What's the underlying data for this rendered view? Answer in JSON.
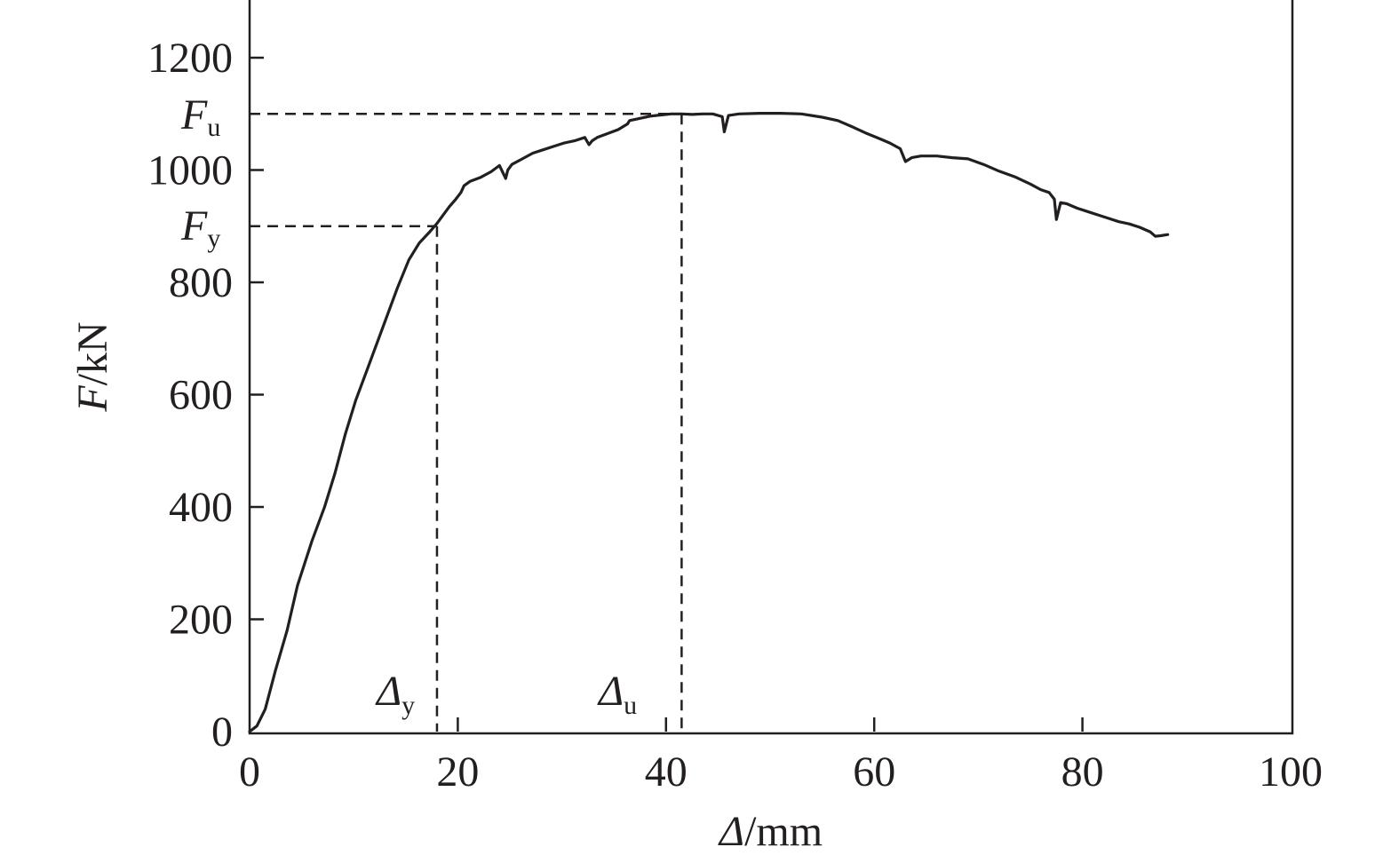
{
  "chart_data": {
    "type": "line",
    "xlabel": {
      "symbol": "Δ",
      "unit": "/mm"
    },
    "ylabel": {
      "symbol": "F",
      "unit": "/kN"
    },
    "xlim": [
      0,
      100
    ],
    "ylim": [
      0,
      1200
    ],
    "x_ticks": [
      0,
      20,
      40,
      60,
      80,
      100
    ],
    "x_tick_labels": [
      "0",
      "20",
      "40",
      "60",
      "80",
      "100"
    ],
    "y_ticks": [
      0,
      200,
      400,
      600,
      800,
      1000,
      1200
    ],
    "y_tick_labels": [
      "0",
      "200",
      "400",
      "600",
      "800",
      "1000",
      "1200"
    ],
    "grid": false,
    "legend": "none",
    "line_color": "#231f20",
    "annotations": {
      "Fu": {
        "symbol": "F",
        "subscript": "u",
        "value": 1100
      },
      "Fy": {
        "symbol": "F",
        "subscript": "y",
        "value": 900
      },
      "Du": {
        "symbol": "Δ",
        "subscript": "u",
        "value": 41.5
      },
      "Dy": {
        "symbol": "Δ",
        "subscript": "y",
        "value": 18
      }
    },
    "series": [
      {
        "x": [
          0,
          0.7,
          1.5,
          2.5,
          3.6,
          4.6,
          5.3,
          6.0,
          7.2,
          8.2,
          9.2,
          10.2,
          11.2,
          12.2,
          13.2,
          14.2,
          15.3,
          16.3,
          17.3,
          18.0,
          18.6,
          19.2,
          19.8,
          20.3,
          20.6,
          21.2,
          22.2,
          23.2,
          24.0,
          24.6,
          24.8,
          25.2,
          26.2,
          27.2,
          28.2,
          29.2,
          30.2,
          31.2,
          32.2,
          32.6,
          32.9,
          33.4,
          34.4,
          35.4,
          36.3,
          36.5,
          37.5,
          38.5,
          39.5,
          40.5,
          41.5,
          42.5,
          43.5,
          44.5,
          45.4,
          45.6,
          46.0,
          47.0,
          49.0,
          51.0,
          53.0,
          55.0,
          56.5,
          58.0,
          59.3,
          60.5,
          61.5,
          62.5,
          63.0,
          63.6,
          64.5,
          66.0,
          67.5,
          69.0,
          70.5,
          72.0,
          73.5,
          75.0,
          76.0,
          76.8,
          77.3,
          77.5,
          77.9,
          78.5,
          79.5,
          80.5,
          81.5,
          82.5,
          83.5,
          84.5,
          85.5,
          86.5,
          87.0,
          87.5,
          88.2
        ],
        "y": [
          0,
          10,
          40,
          110,
          180,
          260,
          300,
          340,
          400,
          460,
          530,
          590,
          640,
          690,
          740,
          790,
          840,
          870,
          890,
          905,
          920,
          935,
          948,
          960,
          972,
          980,
          987,
          997,
          1008,
          985,
          1000,
          1010,
          1020,
          1030,
          1036,
          1042,
          1048,
          1052,
          1058,
          1045,
          1052,
          1058,
          1065,
          1072,
          1082,
          1088,
          1092,
          1096,
          1098,
          1100,
          1100,
          1099,
          1100,
          1100,
          1095,
          1068,
          1097,
          1100,
          1101,
          1101,
          1100,
          1094,
          1088,
          1076,
          1065,
          1056,
          1048,
          1038,
          1015,
          1022,
          1025,
          1025,
          1022,
          1020,
          1010,
          998,
          988,
          975,
          965,
          960,
          948,
          912,
          942,
          940,
          932,
          926,
          920,
          914,
          908,
          904,
          898,
          890,
          882,
          883,
          885
        ]
      }
    ]
  }
}
